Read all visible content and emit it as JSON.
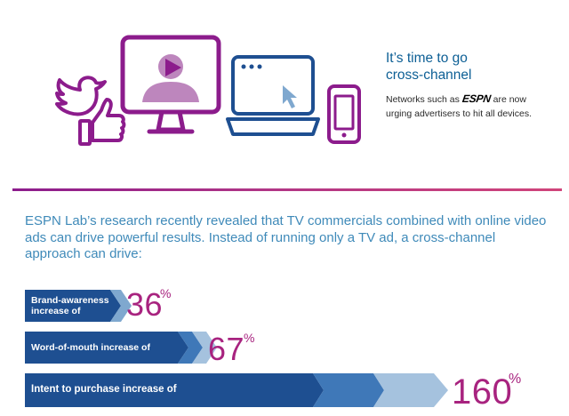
{
  "header": {
    "headline_line1": "It’s time to go",
    "headline_line2": "cross-channel",
    "sub_before_logo": "Networks such as",
    "logo_text": "ESPN",
    "sub_after_logo": "are now urging advertisers to hit all devices."
  },
  "icons": [
    "twitter-bird-icon",
    "thumbs-up-icon",
    "monitor-play-icon",
    "laptop-cursor-icon",
    "smartphone-icon"
  ],
  "colors": {
    "purple": "#8c1c8c",
    "blue": "#1e4f91",
    "magenta": "#a8237f",
    "light_blue_text": "#3f8ab9"
  },
  "intro_text": "ESPN Lab’s research recently revealed that TV commercials combined with online video ads can drive powerful results. Instead of running only a TV ad, a cross-channel approach can drive:",
  "stats": [
    {
      "label_line1": "Brand-awareness",
      "label_line2": "increase of",
      "value": "36",
      "unit": "%"
    },
    {
      "label": "Word-of-mouth increase of",
      "value": "67",
      "unit": "%"
    },
    {
      "label": "Intent to purchase increase of",
      "value": "160",
      "unit": "%"
    }
  ]
}
